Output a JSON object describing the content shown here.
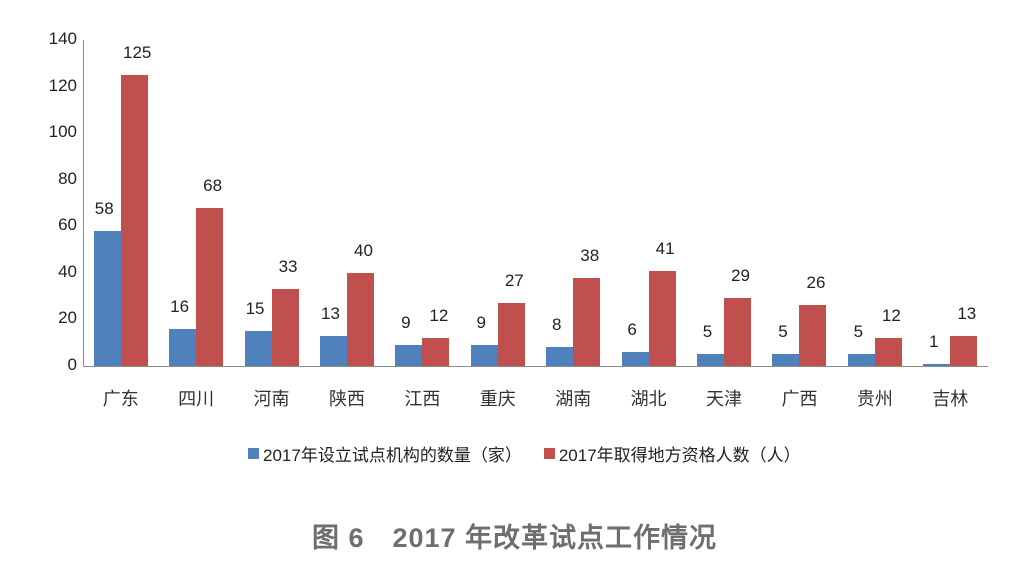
{
  "caption": "图 6　2017 年改革试点工作情况",
  "legend": {
    "series1": "2017年设立试点机构的数量（家）",
    "series2": "2017年取得地方资格人数（人）"
  },
  "colors": {
    "series1": "#4f81bd",
    "series2": "#c0504d",
    "axis": "#8c8c8c",
    "caption": "#6e6e6e"
  },
  "chart_data": {
    "type": "bar",
    "title": "图 6　2017 年改革试点工作情况",
    "xlabel": "",
    "ylabel": "",
    "categories": [
      "广东",
      "四川",
      "河南",
      "陕西",
      "江西",
      "重庆",
      "湖南",
      "湖北",
      "天津",
      "广西",
      "贵州",
      "吉林"
    ],
    "series": [
      {
        "name": "2017年设立试点机构的数量（家）",
        "color": "#4f81bd",
        "values": [
          58,
          16,
          15,
          13,
          9,
          9,
          8,
          6,
          5,
          5,
          5,
          1
        ]
      },
      {
        "name": "2017年取得地方资格人数（人）",
        "color": "#c0504d",
        "values": [
          125,
          68,
          33,
          40,
          12,
          27,
          38,
          41,
          29,
          26,
          12,
          13
        ]
      }
    ],
    "ylim": [
      0,
      140
    ],
    "yticks": [
      0,
      20,
      40,
      60,
      80,
      100,
      120,
      140
    ],
    "grid": false,
    "data_labels": true,
    "legend_position": "bottom"
  }
}
